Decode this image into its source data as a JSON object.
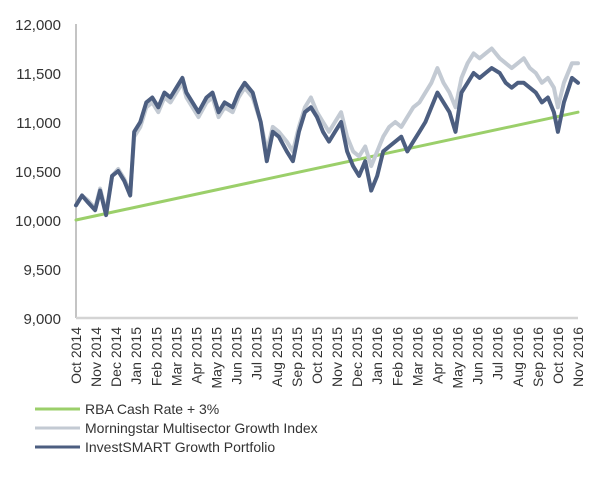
{
  "chart_data": {
    "type": "line",
    "title": "",
    "xlabel": "",
    "ylabel": "",
    "ylim": [
      9000,
      12000
    ],
    "yticks": [
      "9,000",
      "9,500",
      "10,000",
      "10,500",
      "11,000",
      "11,500",
      "12,000"
    ],
    "ytick_values": [
      9000,
      9500,
      10000,
      10500,
      11000,
      11500,
      12000
    ],
    "xtick_labels": [
      "Oct 2014",
      "Nov 2014",
      "Dec 2014",
      "Jan 2015",
      "Feb 2015",
      "Mar 2015",
      "Apr 2015",
      "May 2015",
      "Jun 2015",
      "Jul 2015",
      "Aug 2015",
      "Sep 2015",
      "Oct 2015",
      "Nov 2015",
      "Dec 2015",
      "Jan 2016",
      "Feb 2016",
      "Mar 2016",
      "Apr 2016",
      "May 2016",
      "Jun 2016",
      "Jul 2016",
      "Aug 2016",
      "Sep 2016",
      "Oct 2016",
      "Nov 2016"
    ],
    "x_range_months": [
      0,
      25
    ],
    "grid": false,
    "legend_position": "bottom-left",
    "series": [
      {
        "name": "RBA Cash Rate + 3%",
        "color": "#9bcf6a",
        "x_months": [
          0,
          25
        ],
        "values": [
          10000,
          11100
        ]
      },
      {
        "name": "Morningstar Multisector Growth Index",
        "color": "#c3cad3",
        "x_months": [
          0,
          0.3,
          0.6,
          0.95,
          1.2,
          1.5,
          1.8,
          2.1,
          2.4,
          2.7,
          2.9,
          3.2,
          3.5,
          3.8,
          4.1,
          4.4,
          4.7,
          5.0,
          5.3,
          5.5,
          5.8,
          6.1,
          6.5,
          6.8,
          7.1,
          7.4,
          7.8,
          8.1,
          8.4,
          8.8,
          9.2,
          9.5,
          9.8,
          10.1,
          10.5,
          10.8,
          11.1,
          11.4,
          11.7,
          12.0,
          12.3,
          12.6,
          12.9,
          13.2,
          13.5,
          13.8,
          14.1,
          14.4,
          14.7,
          15.0,
          15.3,
          15.6,
          15.9,
          16.2,
          16.5,
          16.8,
          17.1,
          17.4,
          17.7,
          18.0,
          18.3,
          18.6,
          18.9,
          19.2,
          19.5,
          19.8,
          20.1,
          20.4,
          20.7,
          21.1,
          21.4,
          21.7,
          22.0,
          22.3,
          22.6,
          22.9,
          23.2,
          23.5,
          23.8,
          24.0,
          24.3,
          24.7,
          25.0
        ],
        "values": [
          10150,
          10250,
          10200,
          10120,
          10320,
          10080,
          10450,
          10520,
          10420,
          10280,
          10850,
          10950,
          11150,
          11200,
          11100,
          11250,
          11200,
          11300,
          11400,
          11250,
          11150,
          11050,
          11200,
          11250,
          11050,
          11150,
          11100,
          11250,
          11350,
          11250,
          11000,
          10700,
          10950,
          10900,
          10800,
          10700,
          10950,
          11150,
          11250,
          11100,
          11000,
          10900,
          11000,
          11100,
          10850,
          10700,
          10650,
          10750,
          10550,
          10700,
          10850,
          10950,
          11000,
          10950,
          11050,
          11150,
          11200,
          11300,
          11400,
          11550,
          11400,
          11300,
          11150,
          11450,
          11600,
          11700,
          11650,
          11700,
          11750,
          11650,
          11600,
          11550,
          11600,
          11650,
          11550,
          11500,
          11400,
          11450,
          11350,
          11150,
          11400,
          11600,
          11600
        ]
      },
      {
        "name": "InvestSMART Growth Portfolio",
        "color": "#4c5e80",
        "x_months": [
          0,
          0.3,
          0.6,
          0.95,
          1.2,
          1.5,
          1.8,
          2.1,
          2.4,
          2.7,
          2.9,
          3.2,
          3.5,
          3.8,
          4.1,
          4.4,
          4.7,
          5.0,
          5.3,
          5.5,
          5.8,
          6.1,
          6.5,
          6.8,
          7.1,
          7.4,
          7.8,
          8.1,
          8.4,
          8.8,
          9.2,
          9.5,
          9.8,
          10.1,
          10.5,
          10.8,
          11.1,
          11.4,
          11.7,
          12.0,
          12.3,
          12.6,
          12.9,
          13.2,
          13.5,
          13.8,
          14.1,
          14.4,
          14.7,
          15.0,
          15.3,
          15.6,
          15.9,
          16.2,
          16.5,
          16.8,
          17.1,
          17.4,
          17.7,
          18.0,
          18.3,
          18.6,
          18.9,
          19.2,
          19.5,
          19.8,
          20.1,
          20.4,
          20.7,
          21.1,
          21.4,
          21.7,
          22.0,
          22.3,
          22.6,
          22.9,
          23.2,
          23.5,
          23.8,
          24.0,
          24.3,
          24.7,
          25.0
        ],
        "values": [
          10150,
          10250,
          10180,
          10100,
          10300,
          10050,
          10450,
          10500,
          10400,
          10250,
          10900,
          11000,
          11200,
          11250,
          11150,
          11300,
          11250,
          11350,
          11450,
          11300,
          11200,
          11100,
          11250,
          11300,
          11100,
          11200,
          11150,
          11300,
          11400,
          11300,
          11000,
          10600,
          10900,
          10850,
          10700,
          10600,
          10900,
          11100,
          11150,
          11050,
          10900,
          10800,
          10900,
          11000,
          10700,
          10550,
          10450,
          10600,
          10300,
          10450,
          10700,
          10750,
          10800,
          10850,
          10700,
          10800,
          10900,
          11000,
          11150,
          11300,
          11200,
          11100,
          10900,
          11300,
          11400,
          11500,
          11450,
          11500,
          11550,
          11500,
          11400,
          11350,
          11400,
          11400,
          11350,
          11300,
          11200,
          11250,
          11100,
          10900,
          11200,
          11450,
          11400
        ]
      }
    ]
  }
}
